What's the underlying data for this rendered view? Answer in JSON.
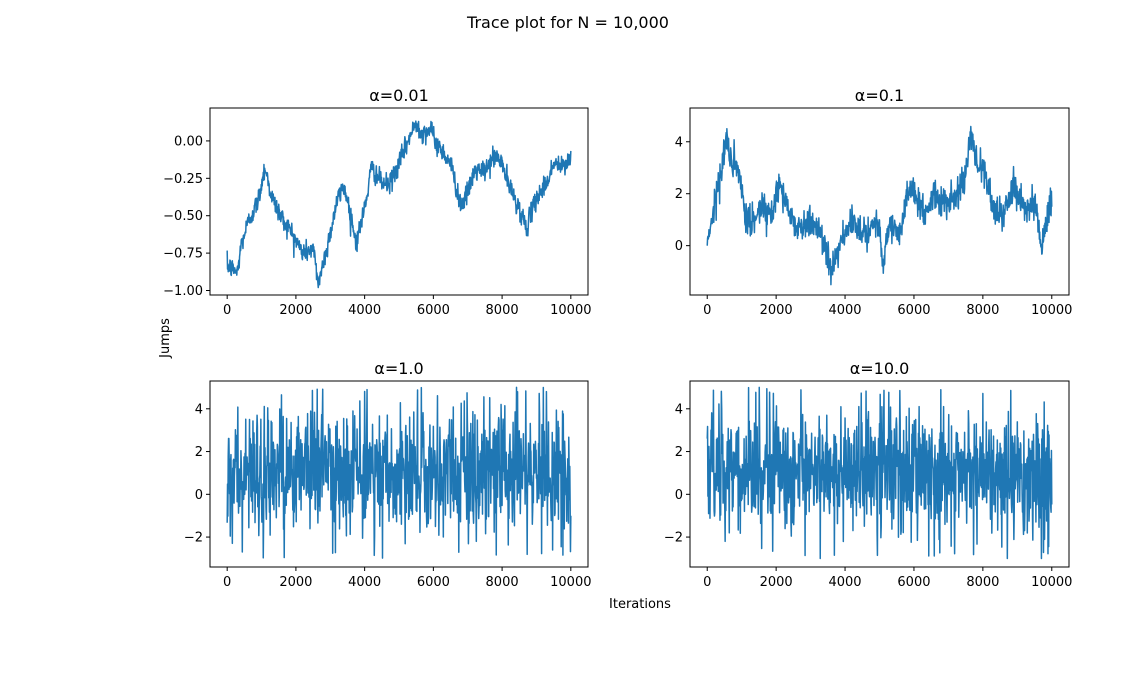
{
  "figure": {
    "title": "Trace plot for N = 10,000",
    "xlabel": "Iterations",
    "ylabel": "Jumps",
    "line_color": "#1f77b4"
  },
  "chart_data": [
    {
      "type": "line",
      "title": "α=0.01",
      "xlim": [
        -500,
        10500
      ],
      "ylim": [
        -1.03,
        0.22
      ],
      "xticks": [
        0,
        2000,
        4000,
        6000,
        8000,
        10000
      ],
      "yticks": [
        -1.0,
        -0.75,
        -0.5,
        -0.25,
        0.0
      ],
      "yticklabels": [
        "−1.00",
        "−0.75",
        "−0.50",
        "−0.25",
        "0.00"
      ],
      "behavior": "slow_random_walk",
      "trend": {
        "x": [
          0,
          300,
          400,
          600,
          900,
          1100,
          1300,
          1600,
          1900,
          2200,
          2500,
          2650,
          2900,
          3200,
          3400,
          3600,
          3750,
          4000,
          4200,
          4500,
          4700,
          5000,
          5300,
          5500,
          5700,
          5900,
          6100,
          6300,
          6500,
          6800,
          7000,
          7200,
          7500,
          7800,
          8000,
          8200,
          8500,
          8700,
          9000,
          9300,
          9500,
          9800,
          10000
        ],
        "y": [
          -0.83,
          -0.88,
          -0.7,
          -0.55,
          -0.4,
          -0.17,
          -0.38,
          -0.52,
          -0.62,
          -0.75,
          -0.72,
          -0.95,
          -0.72,
          -0.4,
          -0.3,
          -0.5,
          -0.68,
          -0.45,
          -0.18,
          -0.28,
          -0.3,
          -0.15,
          0.02,
          0.12,
          0.05,
          0.08,
          -0.02,
          -0.08,
          -0.15,
          -0.43,
          -0.35,
          -0.2,
          -0.2,
          -0.1,
          -0.15,
          -0.3,
          -0.45,
          -0.58,
          -0.38,
          -0.28,
          -0.15,
          -0.18,
          -0.1
        ]
      },
      "jitter": 0.035
    },
    {
      "type": "line",
      "title": "α=0.1",
      "xlim": [
        -500,
        10500
      ],
      "ylim": [
        -1.9,
        5.3
      ],
      "xticks": [
        0,
        2000,
        4000,
        6000,
        8000,
        10000
      ],
      "yticks": [
        0,
        2,
        4
      ],
      "yticklabels": [
        "0",
        "2",
        "4"
      ],
      "behavior": "random_walk",
      "trend": {
        "x": [
          0,
          200,
          400,
          550,
          700,
          900,
          1100,
          1300,
          1600,
          1900,
          2100,
          2400,
          2700,
          3000,
          3300,
          3600,
          3900,
          4200,
          4600,
          5000,
          5100,
          5300,
          5600,
          5800,
          6000,
          6300,
          6600,
          6900,
          7200,
          7500,
          7650,
          7800,
          8000,
          8300,
          8600,
          8900,
          9200,
          9500,
          9700,
          10000
        ],
        "y": [
          0.2,
          1.5,
          2.8,
          4.2,
          3.2,
          2.8,
          1.2,
          0.8,
          1.6,
          1.2,
          2.6,
          1.1,
          0.7,
          0.9,
          0.5,
          -0.8,
          0.2,
          0.8,
          0.6,
          0.9,
          -0.6,
          0.9,
          0.3,
          2.0,
          2.1,
          1.2,
          2.0,
          1.5,
          1.9,
          2.8,
          4.6,
          3.2,
          3.0,
          1.5,
          1.2,
          2.2,
          1.6,
          1.6,
          0.0,
          1.8
        ]
      },
      "jitter": 0.3
    },
    {
      "type": "line",
      "title": "α=1.0",
      "xlim": [
        -500,
        10500
      ],
      "ylim": [
        -3.4,
        5.3
      ],
      "xticks": [
        0,
        2000,
        4000,
        6000,
        8000,
        10000
      ],
      "yticks": [
        -2,
        0,
        2,
        4
      ],
      "yticklabels": [
        "−2",
        "0",
        "2",
        "4"
      ],
      "behavior": "noise",
      "center": 1.0,
      "spread": 1.4,
      "min": -3.0,
      "max": 5.0
    },
    {
      "type": "line",
      "title": "α=10.0",
      "xlim": [
        -500,
        10500
      ],
      "ylim": [
        -3.4,
        5.3
      ],
      "xticks": [
        0,
        2000,
        4000,
        6000,
        8000,
        10000
      ],
      "yticks": [
        -2,
        0,
        2,
        4
      ],
      "yticklabels": [
        "−2",
        "0",
        "2",
        "4"
      ],
      "behavior": "noise",
      "center": 1.0,
      "spread": 1.4,
      "min": -3.0,
      "max": 5.0
    }
  ]
}
